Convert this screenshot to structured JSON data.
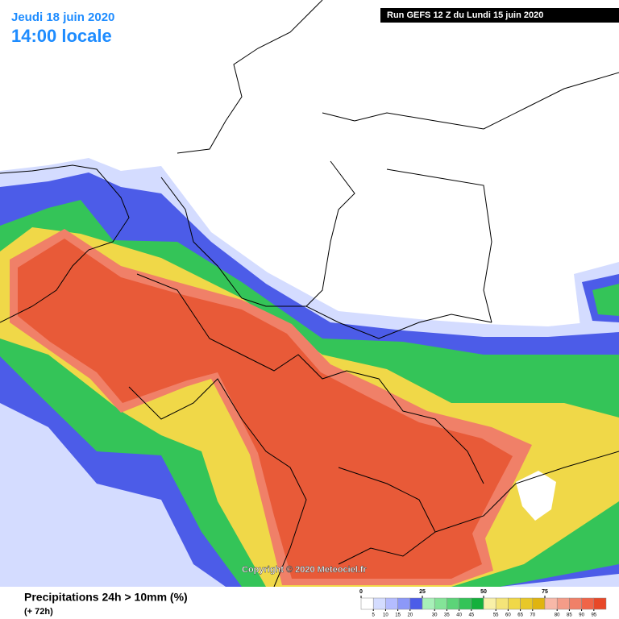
{
  "header": {
    "date": "Jeudi 18 juin 2020",
    "time": "14:00 locale",
    "run": "Run GEFS 12 Z du Lundi 15 juin 2020"
  },
  "copyright": "Copyright © 2020 Meteociel.fr",
  "caption": {
    "title": "Precipitations 24h > 10mm (%)",
    "lead": "(+ 72h)"
  },
  "legend": {
    "range": [
      0,
      100
    ],
    "major_ticks": [
      0,
      25,
      50,
      75
    ],
    "minor_ticks": [
      5,
      10,
      15,
      20,
      30,
      35,
      40,
      45,
      55,
      60,
      65,
      70,
      80,
      85,
      90,
      95
    ],
    "colors": [
      "#ffffff",
      "#d4dcff",
      "#b4bcff",
      "#8c98f8",
      "#4c5ce8",
      "#a8f0b8",
      "#84e498",
      "#5cd478",
      "#34c458",
      "#14b03c",
      "#f8f0a8",
      "#f4e478",
      "#f0d848",
      "#e8c828",
      "#e0b410",
      "#f8b8a8",
      "#f49c88",
      "#f08068",
      "#f06448",
      "#e84828"
    ]
  }
}
